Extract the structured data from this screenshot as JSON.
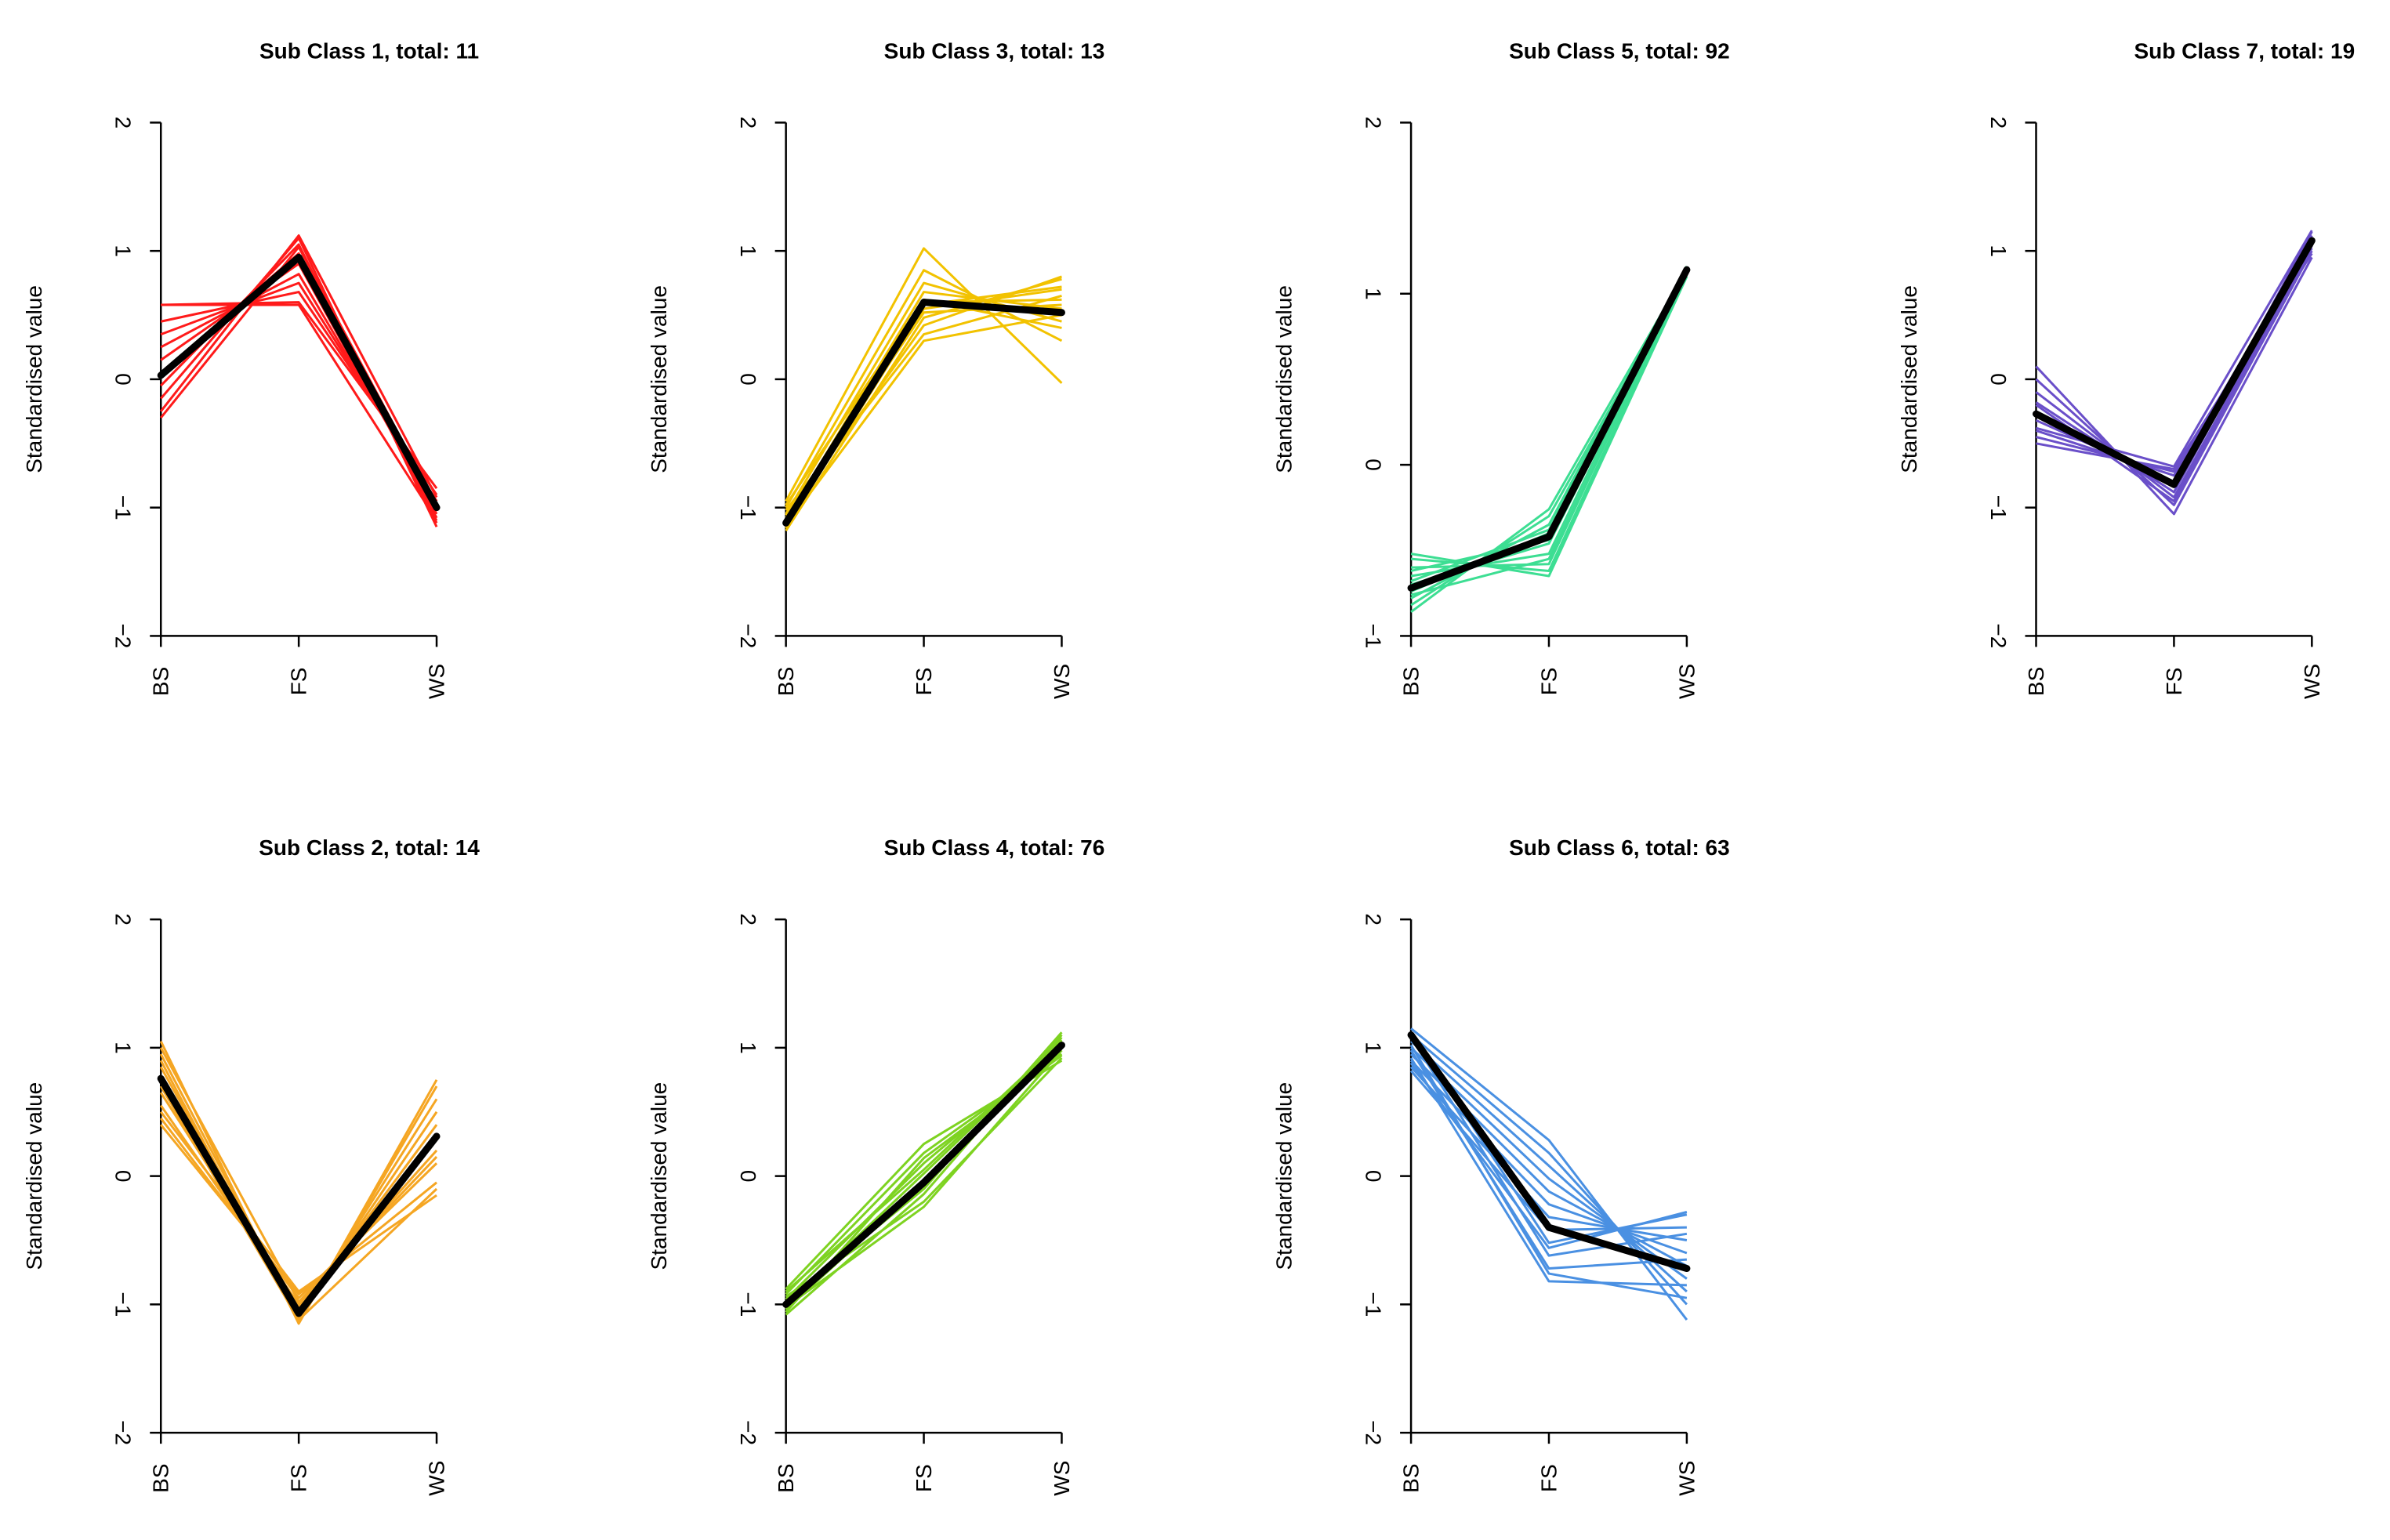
{
  "chart_data": [
    {
      "type": "line",
      "title": "Sub Class 1, total: 11",
      "ylabel": "Standardised value",
      "categories": [
        "BS",
        "FS",
        "WS"
      ],
      "ylim": [
        -2,
        2
      ],
      "yticks": [
        "−2",
        "−1",
        "0",
        "1",
        "2"
      ],
      "color": "#ff1a1a",
      "mean": [
        0.03,
        0.95,
        -1.0
      ],
      "series": [
        [
          0.58,
          0.6,
          -0.85
        ],
        [
          0.45,
          0.68,
          -0.9
        ],
        [
          0.35,
          0.75,
          -0.95
        ],
        [
          0.25,
          0.82,
          -1.0
        ],
        [
          0.15,
          0.9,
          -1.05
        ],
        [
          0.05,
          0.98,
          -1.08
        ],
        [
          -0.05,
          1.05,
          -1.12
        ],
        [
          -0.15,
          1.1,
          -1.15
        ],
        [
          -0.25,
          1.12,
          -0.92
        ],
        [
          -0.3,
          1.03,
          -0.98
        ],
        [
          0.58,
          0.58,
          -1.1
        ]
      ]
    },
    {
      "type": "line",
      "title": "Sub Class 3, total: 13",
      "ylabel": "Standardised value",
      "categories": [
        "BS",
        "FS",
        "WS"
      ],
      "ylim": [
        -2,
        2
      ],
      "yticks": [
        "−2",
        "−1",
        "0",
        "1",
        "2"
      ],
      "color": "#f2c200",
      "mean": [
        -1.12,
        0.6,
        0.52
      ],
      "series": [
        [
          -0.95,
          1.02,
          -0.03
        ],
        [
          -1.0,
          0.85,
          0.3
        ],
        [
          -1.05,
          0.75,
          0.45
        ],
        [
          -1.1,
          0.68,
          0.55
        ],
        [
          -1.12,
          0.6,
          0.62
        ],
        [
          -1.15,
          0.55,
          0.7
        ],
        [
          -1.18,
          0.48,
          0.78
        ],
        [
          -1.08,
          0.42,
          0.8
        ],
        [
          -1.02,
          0.35,
          0.65
        ],
        [
          -1.14,
          0.3,
          0.5
        ],
        [
          -0.98,
          0.62,
          0.4
        ],
        [
          -1.06,
          0.52,
          0.58
        ],
        [
          -1.16,
          0.58,
          0.72
        ]
      ]
    },
    {
      "type": "line",
      "title": "Sub Class 5, total: 92",
      "ylabel": "Standardised value",
      "categories": [
        "BS",
        "FS",
        "WS"
      ],
      "ylim": [
        -1,
        2
      ],
      "yticks": [
        "−1",
        "0",
        "1",
        "2"
      ],
      "color": "#3dde93",
      "mean": [
        -0.72,
        -0.42,
        1.14
      ],
      "series": [
        [
          -0.52,
          -0.65,
          1.1
        ],
        [
          -0.55,
          -0.62,
          1.12
        ],
        [
          -0.6,
          -0.58,
          1.14
        ],
        [
          -0.65,
          -0.52,
          1.15
        ],
        [
          -0.7,
          -0.46,
          1.13
        ],
        [
          -0.74,
          -0.4,
          1.11
        ],
        [
          -0.78,
          -0.35,
          1.16
        ],
        [
          -0.82,
          -0.3,
          1.12
        ],
        [
          -0.86,
          -0.26,
          1.14
        ],
        [
          -0.62,
          -0.44,
          1.1
        ],
        [
          -0.68,
          -0.38,
          1.15
        ],
        [
          -0.76,
          -0.55,
          1.12
        ]
      ]
    },
    {
      "type": "line",
      "title": "Sub Class 7, total: 19",
      "ylabel": "Standardised value",
      "categories": [
        "BS",
        "FS",
        "WS"
      ],
      "ylim": [
        -2,
        2
      ],
      "yticks": [
        "−2",
        "−1",
        "0",
        "1",
        "2"
      ],
      "color": "#6a4fc9",
      "mean": [
        -0.27,
        -0.82,
        1.08
      ],
      "series": [
        [
          0.1,
          -1.05,
          0.95
        ],
        [
          0.0,
          -0.98,
          1.0
        ],
        [
          -0.1,
          -0.92,
          1.05
        ],
        [
          -0.18,
          -0.88,
          1.1
        ],
        [
          -0.25,
          -0.84,
          1.15
        ],
        [
          -0.32,
          -0.8,
          1.12
        ],
        [
          -0.4,
          -0.75,
          1.08
        ],
        [
          -0.45,
          -0.72,
          1.02
        ],
        [
          -0.5,
          -0.7,
          0.98
        ],
        [
          -0.38,
          -0.68,
          1.16
        ],
        [
          -0.2,
          -0.95,
          1.04
        ]
      ]
    },
    {
      "type": "line",
      "title": "Sub Class 2, total: 14",
      "ylabel": "Standardised value",
      "categories": [
        "BS",
        "FS",
        "WS"
      ],
      "ylim": [
        -2,
        2
      ],
      "yticks": [
        "−2",
        "−1",
        "0",
        "1",
        "2"
      ],
      "color": "#f5a623",
      "mean": [
        0.76,
        -1.07,
        0.31
      ],
      "series": [
        [
          1.05,
          -1.15,
          0.75
        ],
        [
          0.95,
          -1.1,
          0.6
        ],
        [
          0.85,
          -1.08,
          0.5
        ],
        [
          0.75,
          -1.05,
          0.4
        ],
        [
          0.65,
          -1.02,
          0.3
        ],
        [
          0.55,
          -1.0,
          0.2
        ],
        [
          0.45,
          -0.95,
          0.1
        ],
        [
          0.4,
          -0.92,
          -0.05
        ],
        [
          0.5,
          -0.9,
          -0.15
        ],
        [
          0.7,
          -1.12,
          -0.1
        ],
        [
          0.9,
          -1.14,
          0.7
        ],
        [
          1.0,
          -0.98,
          0.15
        ]
      ]
    },
    {
      "type": "line",
      "title": "Sub Class 4, total: 76",
      "ylabel": "Standardised value",
      "categories": [
        "BS",
        "FS",
        "WS"
      ],
      "ylim": [
        -2,
        2
      ],
      "yticks": [
        "−2",
        "−1",
        "0",
        "1",
        "2"
      ],
      "color": "#7ed321",
      "mean": [
        -1.0,
        -0.05,
        1.02
      ],
      "series": [
        [
          -0.88,
          0.25,
          0.9
        ],
        [
          -0.92,
          0.18,
          0.95
        ],
        [
          -0.96,
          0.1,
          1.0
        ],
        [
          -1.0,
          0.02,
          1.05
        ],
        [
          -1.04,
          -0.06,
          1.08
        ],
        [
          -1.08,
          -0.14,
          1.1
        ],
        [
          -0.94,
          -0.2,
          0.92
        ],
        [
          -1.02,
          -0.24,
          0.98
        ],
        [
          -0.9,
          0.05,
          1.06
        ],
        [
          -1.06,
          0.14,
          0.94
        ],
        [
          -0.98,
          -0.1,
          1.12
        ]
      ]
    },
    {
      "type": "line",
      "title": "Sub Class 6, total: 63",
      "ylabel": "Standardised value",
      "categories": [
        "BS",
        "FS",
        "WS"
      ],
      "ylim": [
        -2,
        2
      ],
      "yticks": [
        "−2",
        "−1",
        "0",
        "1",
        "2"
      ],
      "color": "#4a90e2",
      "mean": [
        1.1,
        -0.4,
        -0.72
      ],
      "series": [
        [
          1.15,
          0.28,
          -1.12
        ],
        [
          1.1,
          0.18,
          -1.0
        ],
        [
          1.05,
          0.08,
          -0.9
        ],
        [
          1.0,
          -0.02,
          -0.8
        ],
        [
          0.95,
          -0.12,
          -0.7
        ],
        [
          0.9,
          -0.22,
          -0.6
        ],
        [
          0.85,
          -0.32,
          -0.5
        ],
        [
          0.82,
          -0.42,
          -0.4
        ],
        [
          1.12,
          -0.52,
          -0.3
        ],
        [
          1.08,
          -0.62,
          -0.45
        ],
        [
          0.98,
          -0.72,
          -0.65
        ],
        [
          0.92,
          -0.82,
          -0.85
        ],
        [
          1.02,
          -0.76,
          -0.95
        ],
        [
          0.88,
          -0.56,
          -0.28
        ]
      ]
    }
  ]
}
